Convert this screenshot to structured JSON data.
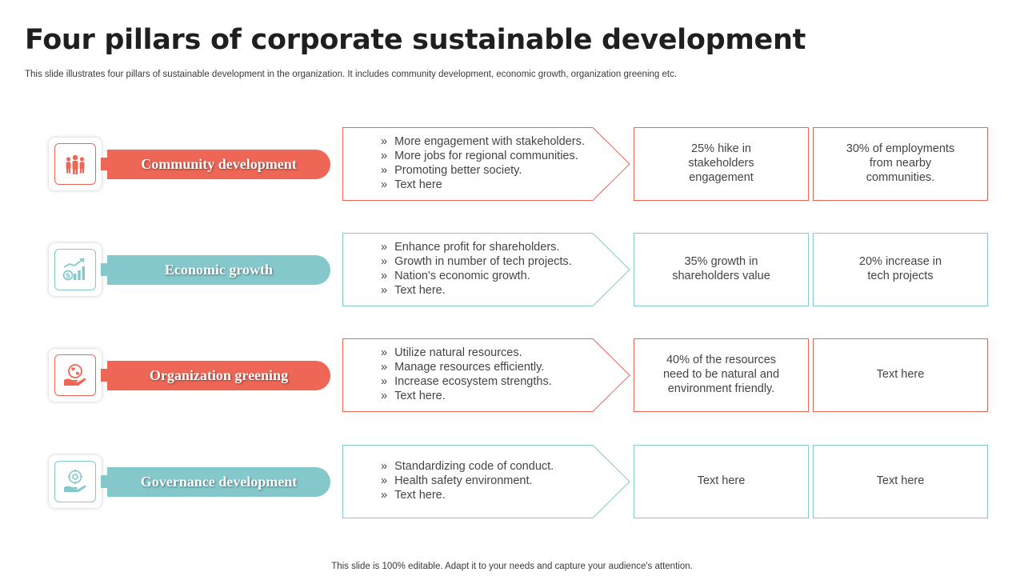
{
  "title": "Four pillars of corporate sustainable development",
  "subtitle": "This slide illustrates four pillars of sustainable development in the organization. It includes community development, economic growth, organization greening etc.",
  "footer": "This slide is 100% editable. Adapt it to your needs and capture your audience's attention.",
  "colors": {
    "coral": "#EE6655",
    "teal": "#85C8CC"
  },
  "pillars": [
    {
      "label": "Community development",
      "icon": "people-group-icon",
      "color": "coral",
      "bullets": [
        "More engagement with stakeholders.",
        "More jobs for regional communities.",
        "Promoting better society.",
        "Text here"
      ],
      "stat1": "25% hike in\nstakeholders\nengagement",
      "stat2": "30% of employments\nfrom nearby\ncommunities."
    },
    {
      "label": "Economic growth",
      "icon": "growth-chart-icon",
      "color": "teal",
      "bullets": [
        "Enhance profit for shareholders.",
        "Growth in number of tech projects.",
        "Nation's economic growth.",
        "Text here."
      ],
      "stat1": "35% growth in\nshareholders value",
      "stat2": "20% increase in\ntech projects"
    },
    {
      "label": "Organization greening",
      "icon": "globe-hand-icon",
      "color": "coral",
      "bullets": [
        "Utilize natural resources.",
        "Manage resources efficiently.",
        "Increase ecosystem strengths.",
        "Text here."
      ],
      "stat1": "40% of the resources\nneed to be natural and\nenvironment friendly.",
      "stat2": "Text here"
    },
    {
      "label": "Governance development",
      "icon": "governance-hand-icon",
      "color": "teal",
      "bullets": [
        "Standardizing code of conduct.",
        "Health safety environment.",
        "Text here."
      ],
      "stat1": "Text here",
      "stat2": "Text here"
    }
  ]
}
